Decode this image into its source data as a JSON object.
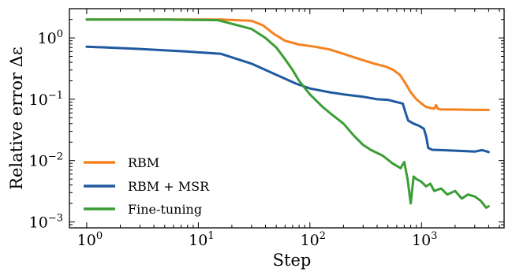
{
  "chart_data": {
    "type": "line",
    "xlabel": "Step",
    "ylabel": "Relative error Δε",
    "xscale": "log",
    "yscale": "log",
    "xlim": [
      0.7,
      5500
    ],
    "ylim": [
      0.0008,
      3.0
    ],
    "grid": false,
    "legend_position": "lower-left",
    "x_ticks": [
      {
        "value": 1,
        "base": "10",
        "exp": "0"
      },
      {
        "value": 10,
        "base": "10",
        "exp": "1"
      },
      {
        "value": 100,
        "base": "10",
        "exp": "2"
      },
      {
        "value": 1000,
        "base": "10",
        "exp": "3"
      }
    ],
    "y_ticks": [
      {
        "value": 1,
        "base": "10",
        "exp": "0"
      },
      {
        "value": 0.1,
        "base": "10",
        "exp": "−1"
      },
      {
        "value": 0.01,
        "base": "10",
        "exp": "−2"
      },
      {
        "value": 0.001,
        "base": "10",
        "exp": "−3"
      }
    ],
    "series": [
      {
        "name": "RBM",
        "color": "#f58220",
        "x": [
          1,
          5,
          16,
          30,
          38,
          48,
          60,
          80,
          110,
          150,
          200,
          280,
          380,
          480,
          560,
          640,
          720,
          800,
          900,
          1000,
          1100,
          1200,
          1300,
          1350,
          1400,
          1500,
          2000,
          3000,
          4000
        ],
        "y": [
          2.0,
          2.0,
          2.0,
          1.9,
          1.6,
          1.15,
          0.9,
          0.78,
          0.72,
          0.65,
          0.55,
          0.45,
          0.38,
          0.34,
          0.3,
          0.25,
          0.18,
          0.13,
          0.1,
          0.085,
          0.075,
          0.072,
          0.07,
          0.08,
          0.07,
          0.068,
          0.068,
          0.067,
          0.067
        ]
      },
      {
        "name": "RBM + MSR",
        "color": "#1f5aa0",
        "x": [
          1,
          3,
          8,
          16,
          30,
          50,
          75,
          100,
          150,
          200,
          300,
          400,
          500,
          600,
          680,
          720,
          760,
          850,
          950,
          1050,
          1100,
          1150,
          1250,
          1500,
          2000,
          3000,
          3500,
          4000
        ],
        "y": [
          0.72,
          0.66,
          0.6,
          0.55,
          0.38,
          0.25,
          0.18,
          0.15,
          0.13,
          0.12,
          0.11,
          0.1,
          0.098,
          0.09,
          0.085,
          0.06,
          0.045,
          0.04,
          0.037,
          0.033,
          0.025,
          0.016,
          0.015,
          0.0148,
          0.0145,
          0.014,
          0.0148,
          0.0138
        ]
      },
      {
        "name": "Fine-tuning",
        "color": "#3a9e35",
        "x": [
          1,
          5,
          15,
          20,
          30,
          40,
          50,
          60,
          70,
          80,
          100,
          130,
          160,
          200,
          250,
          300,
          350,
          450,
          550,
          650,
          700,
          750,
          800,
          850,
          900,
          1000,
          1100,
          1200,
          1300,
          1500,
          1700,
          2000,
          2300,
          2600,
          3000,
          3400,
          3800,
          4000
        ],
        "y": [
          2.0,
          2.0,
          1.95,
          1.7,
          1.4,
          1.0,
          0.7,
          0.45,
          0.3,
          0.2,
          0.12,
          0.075,
          0.055,
          0.04,
          0.025,
          0.018,
          0.015,
          0.012,
          0.009,
          0.0075,
          0.0095,
          0.005,
          0.002,
          0.0055,
          0.005,
          0.0045,
          0.0038,
          0.0042,
          0.0032,
          0.0035,
          0.0028,
          0.0032,
          0.0024,
          0.0028,
          0.0026,
          0.0022,
          0.0017,
          0.0018
        ]
      }
    ]
  }
}
